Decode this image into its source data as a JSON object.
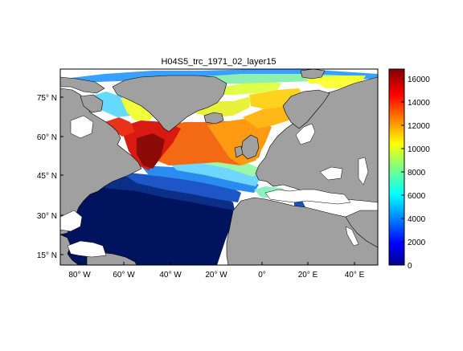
{
  "title": "H04S5_trc_1971_02_layer15",
  "map": {
    "lat_ticks": [
      "75° N",
      "60° N",
      "45° N",
      "30° N",
      "15° N"
    ],
    "lon_ticks": [
      "80° W",
      "60° W",
      "40° W",
      "20° W",
      "0°",
      "20° E",
      "40° E"
    ],
    "land_color": "#a0a0a0",
    "nodata_color": "#ffffff",
    "coastline_color": "#000000"
  },
  "colorbar": {
    "ticks": [
      "0",
      "2000",
      "4000",
      "6000",
      "8000",
      "10000",
      "12000",
      "14000",
      "16000"
    ],
    "min": 0,
    "max": 16800,
    "colormap": "jet"
  }
}
